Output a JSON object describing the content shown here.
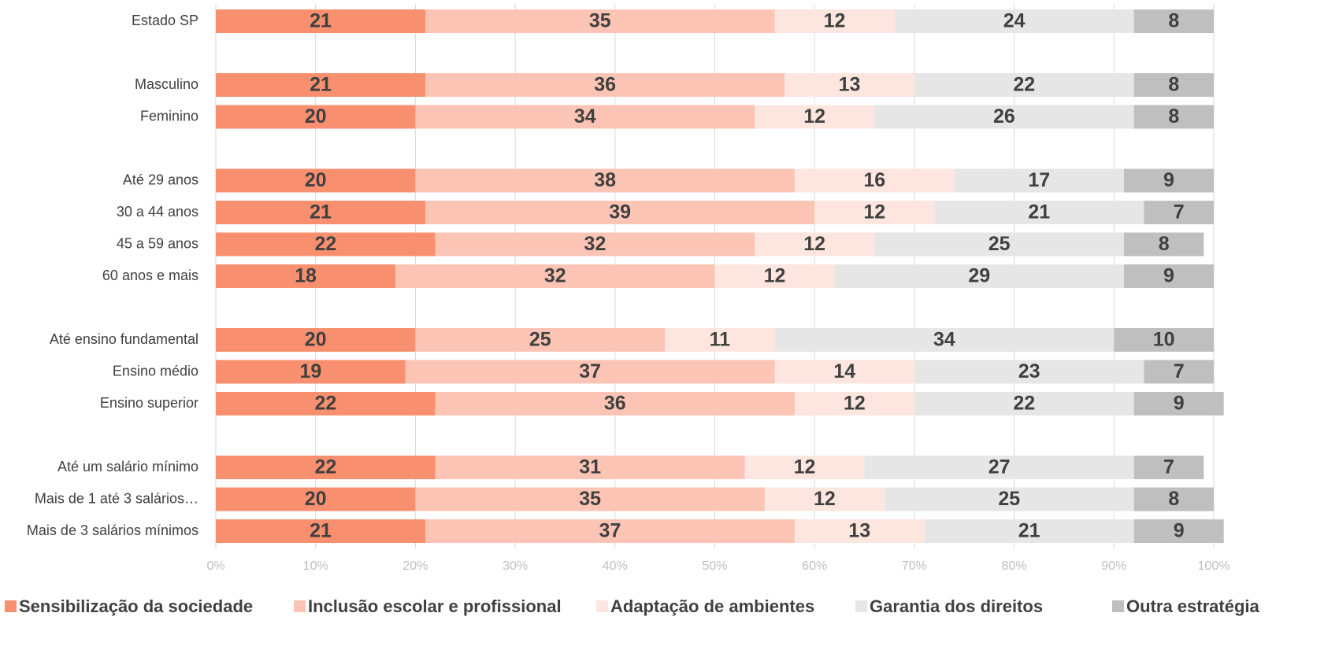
{
  "chart_data": {
    "type": "bar",
    "orientation": "horizontal",
    "stacked": true,
    "categories": [
      "Estado SP",
      "Masculino",
      "Feminino",
      "Até 29 anos",
      "30 a 44 anos",
      "45 a 59 anos",
      "60 anos e mais",
      "Até ensino fundamental",
      "Ensino médio",
      "Ensino superior",
      "Até um salário mínimo",
      "Mais de 1 até 3 salários…",
      "Mais de 3 salários mínimos"
    ],
    "series": [
      {
        "name": "Sensibilização da sociedade",
        "color": "#f8906f",
        "values": [
          21,
          21,
          20,
          20,
          21,
          22,
          18,
          20,
          19,
          22,
          22,
          20,
          21
        ]
      },
      {
        "name": "Inclusão escolar e profissional",
        "color": "#fcc4b4",
        "values": [
          35,
          36,
          34,
          38,
          39,
          32,
          32,
          25,
          37,
          36,
          31,
          35,
          37
        ]
      },
      {
        "name": "Adaptação de ambientes",
        "color": "#fde6df",
        "values": [
          12,
          13,
          12,
          16,
          12,
          12,
          12,
          11,
          14,
          12,
          12,
          12,
          13
        ]
      },
      {
        "name": "Garantia dos direitos",
        "color": "#e6e6e6",
        "values": [
          24,
          22,
          26,
          17,
          21,
          25,
          29,
          34,
          23,
          22,
          27,
          25,
          21
        ]
      },
      {
        "name": "Outra estratégia",
        "color": "#bfbfbf",
        "values": [
          8,
          8,
          8,
          9,
          7,
          8,
          9,
          10,
          7,
          9,
          7,
          8,
          9
        ]
      }
    ],
    "xlim": [
      0,
      100
    ],
    "xticks": [
      {
        "value": 0,
        "label": "0%"
      },
      {
        "value": 10,
        "label": "10%"
      },
      {
        "value": 20,
        "label": "20%"
      },
      {
        "value": 30,
        "label": "30%"
      },
      {
        "value": 40,
        "label": "40%"
      },
      {
        "value": 50,
        "label": "50%"
      },
      {
        "value": 60,
        "label": "60%"
      },
      {
        "value": 70,
        "label": "70%"
      },
      {
        "value": 80,
        "label": "80%"
      },
      {
        "value": 90,
        "label": "90%"
      },
      {
        "value": 100,
        "label": "100%"
      }
    ],
    "grid": true,
    "legend": "bottom"
  }
}
